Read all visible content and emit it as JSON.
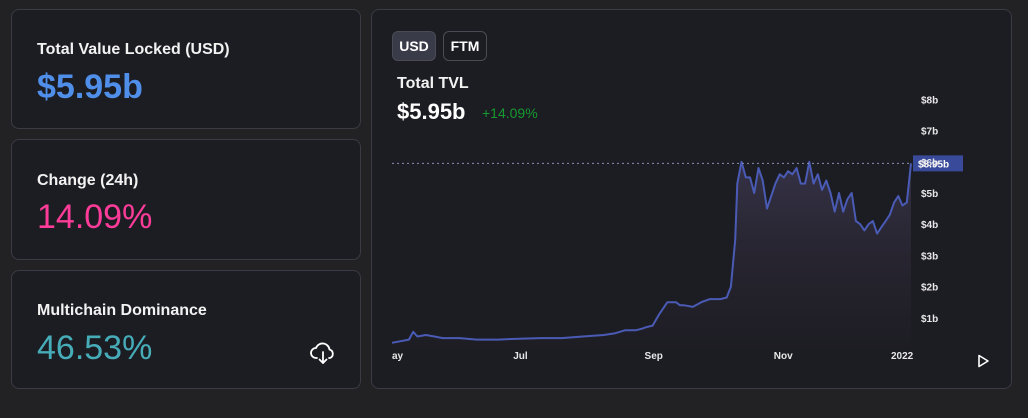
{
  "stats": {
    "tvl": {
      "label": "Total Value Locked (USD)",
      "value": "$5.95b"
    },
    "change": {
      "label": "Change (24h)",
      "value": "14.09%"
    },
    "dominance": {
      "label": "Multichain Dominance",
      "value": "46.53%"
    }
  },
  "icons": {
    "download": "download-cloud-icon",
    "play": "play-icon"
  },
  "chart_panel": {
    "toggles": [
      {
        "label": "USD",
        "active": true
      },
      {
        "label": "FTM",
        "active": false
      }
    ],
    "title": "Total TVL",
    "value": "$5.95b",
    "change": "+14.09%",
    "colors": {
      "line": "#4a5bb5",
      "change_positive": "#169a2f",
      "marker_bg": "#3a4a9a"
    }
  },
  "chart_data": {
    "type": "area",
    "title": "Total TVL",
    "y_unit": "USD billions",
    "ylim": [
      0,
      8.5
    ],
    "y_ticks": [
      {
        "value": 1,
        "label": "$1b"
      },
      {
        "value": 2,
        "label": "$2b"
      },
      {
        "value": 3,
        "label": "$3b"
      },
      {
        "value": 4,
        "label": "$4b"
      },
      {
        "value": 5,
        "label": "$5b"
      },
      {
        "value": 6,
        "label": "$6b"
      },
      {
        "value": 7,
        "label": "$7b"
      },
      {
        "value": 8,
        "label": "$8b"
      }
    ],
    "x_ticks": [
      {
        "t": 0,
        "label": "ay"
      },
      {
        "t": 61,
        "label": "Jul"
      },
      {
        "t": 123,
        "label": "Sep"
      },
      {
        "t": 184,
        "label": "Nov"
      },
      {
        "t": 245,
        "label": "2022"
      }
    ],
    "current_marker": {
      "value": 5.95,
      "label": "$5.95b"
    },
    "grid": false,
    "x": [
      0,
      8,
      10,
      12,
      16,
      20,
      24,
      28,
      32,
      40,
      50,
      60,
      70,
      80,
      90,
      100,
      105,
      110,
      115,
      118,
      120,
      123,
      126,
      130,
      134,
      136,
      138,
      142,
      146,
      150,
      155,
      158,
      160,
      162,
      163,
      165,
      167,
      169,
      171,
      173,
      175,
      177,
      179,
      181,
      183,
      185,
      187,
      189,
      191,
      193,
      195,
      197,
      199,
      201,
      203,
      205,
      207,
      209,
      211,
      213,
      215,
      217,
      219,
      221,
      223,
      225,
      227,
      229,
      231,
      233,
      235,
      237,
      239,
      241,
      243,
      245
    ],
    "y": [
      0.2,
      0.3,
      0.55,
      0.4,
      0.45,
      0.4,
      0.35,
      0.35,
      0.35,
      0.3,
      0.3,
      0.33,
      0.35,
      0.35,
      0.4,
      0.45,
      0.5,
      0.6,
      0.6,
      0.65,
      0.7,
      0.75,
      1.1,
      1.5,
      1.5,
      1.4,
      1.4,
      1.35,
      1.5,
      1.6,
      1.6,
      1.65,
      2.0,
      3.5,
      5.3,
      6.0,
      5.5,
      5.5,
      5.0,
      5.8,
      5.4,
      4.5,
      4.9,
      5.3,
      5.6,
      5.5,
      5.7,
      5.6,
      5.8,
      5.3,
      5.3,
      6.0,
      5.3,
      5.6,
      5.1,
      5.4,
      5.0,
      4.4,
      5.0,
      4.4,
      4.8,
      5.0,
      4.1,
      4.0,
      3.8,
      4.0,
      4.1,
      3.7,
      3.9,
      4.1,
      4.3,
      4.7,
      4.9,
      4.6,
      4.7,
      5.95
    ]
  }
}
